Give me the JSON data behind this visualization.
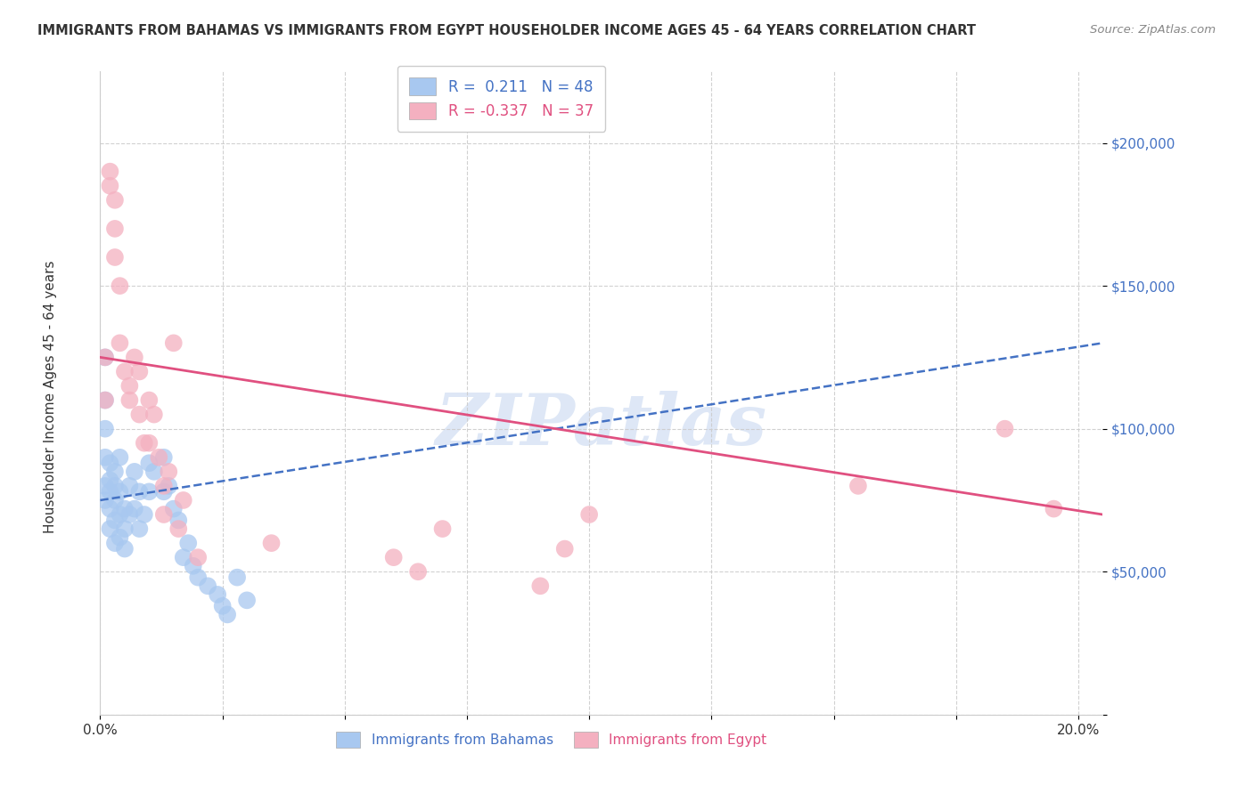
{
  "title": "IMMIGRANTS FROM BAHAMAS VS IMMIGRANTS FROM EGYPT HOUSEHOLDER INCOME AGES 45 - 64 YEARS CORRELATION CHART",
  "source": "Source: ZipAtlas.com",
  "ylabel": "Householder Income Ages 45 - 64 years",
  "xlim": [
    0.0,
    0.205
  ],
  "ylim": [
    0,
    225000
  ],
  "yticks": [
    0,
    50000,
    100000,
    150000,
    200000
  ],
  "ytick_labels": [
    "",
    "$50,000",
    "$100,000",
    "$150,000",
    "$200,000"
  ],
  "xticks": [
    0.0,
    0.025,
    0.05,
    0.075,
    0.1,
    0.125,
    0.15,
    0.175,
    0.2
  ],
  "xtick_labels": [
    "0.0%",
    "",
    "",
    "",
    "",
    "",
    "",
    "",
    "20.0%"
  ],
  "bahamas_R": 0.211,
  "bahamas_N": 48,
  "egypt_R": -0.337,
  "egypt_N": 37,
  "bahamas_color": "#a8c8f0",
  "egypt_color": "#f4b0c0",
  "bahamas_line_color": "#4472C4",
  "egypt_line_color": "#e05080",
  "trend_line_color": "#8888bb",
  "watermark": "ZIPatlas",
  "bahamas_x": [
    0.001,
    0.001,
    0.001,
    0.001,
    0.001,
    0.001,
    0.002,
    0.002,
    0.002,
    0.002,
    0.002,
    0.003,
    0.003,
    0.003,
    0.003,
    0.003,
    0.004,
    0.004,
    0.004,
    0.004,
    0.005,
    0.005,
    0.005,
    0.006,
    0.006,
    0.007,
    0.007,
    0.008,
    0.008,
    0.009,
    0.01,
    0.01,
    0.011,
    0.013,
    0.013,
    0.014,
    0.015,
    0.016,
    0.017,
    0.018,
    0.019,
    0.02,
    0.022,
    0.024,
    0.025,
    0.026,
    0.028,
    0.03
  ],
  "bahamas_y": [
    125000,
    110000,
    100000,
    90000,
    80000,
    75000,
    88000,
    82000,
    78000,
    72000,
    65000,
    85000,
    80000,
    75000,
    68000,
    60000,
    90000,
    78000,
    70000,
    62000,
    72000,
    65000,
    58000,
    80000,
    70000,
    85000,
    72000,
    78000,
    65000,
    70000,
    88000,
    78000,
    85000,
    90000,
    78000,
    80000,
    72000,
    68000,
    55000,
    60000,
    52000,
    48000,
    45000,
    42000,
    38000,
    35000,
    48000,
    40000
  ],
  "egypt_x": [
    0.001,
    0.001,
    0.002,
    0.002,
    0.003,
    0.003,
    0.003,
    0.004,
    0.004,
    0.005,
    0.006,
    0.006,
    0.007,
    0.008,
    0.008,
    0.009,
    0.01,
    0.01,
    0.011,
    0.012,
    0.013,
    0.013,
    0.014,
    0.015,
    0.016,
    0.017,
    0.02,
    0.035,
    0.06,
    0.065,
    0.07,
    0.09,
    0.095,
    0.1,
    0.155,
    0.185,
    0.195
  ],
  "egypt_y": [
    125000,
    110000,
    190000,
    185000,
    180000,
    170000,
    160000,
    150000,
    130000,
    120000,
    115000,
    110000,
    125000,
    120000,
    105000,
    95000,
    110000,
    95000,
    105000,
    90000,
    80000,
    70000,
    85000,
    130000,
    65000,
    75000,
    55000,
    60000,
    55000,
    50000,
    65000,
    45000,
    58000,
    70000,
    80000,
    100000,
    72000
  ]
}
